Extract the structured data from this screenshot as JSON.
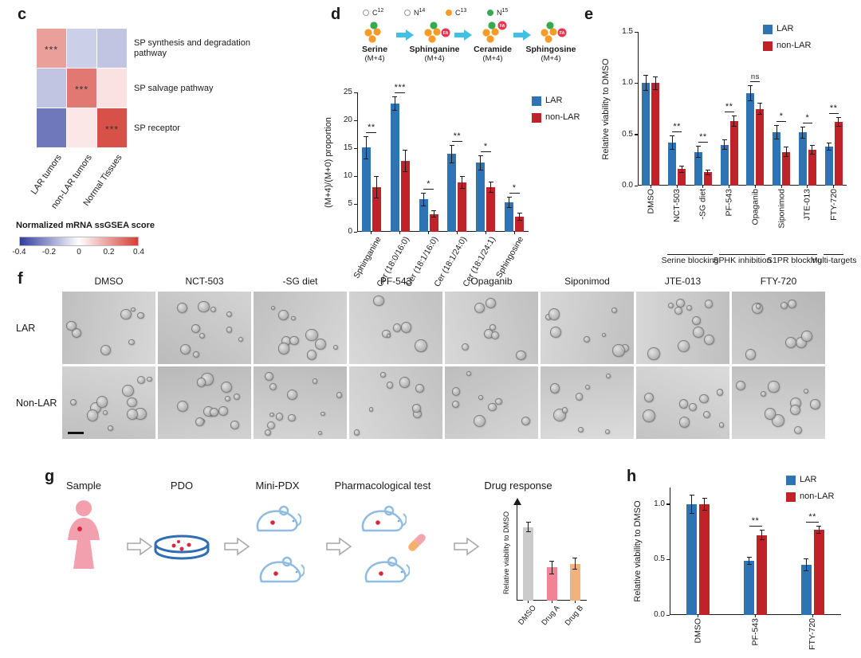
{
  "figure": {
    "panel_labels": {
      "c": "c",
      "d": "d",
      "e": "e",
      "f": "f",
      "g": "g",
      "h": "h"
    }
  },
  "colors": {
    "lar": "#2e74b5",
    "non_lar": "#bf2228",
    "pathway_arrow": "#41c0e6"
  },
  "panel_d": {
    "isotope_legend": [
      {
        "symbol": "C",
        "superscript": "12",
        "color": "none"
      },
      {
        "symbol": "N",
        "superscript": "14",
        "color": "none"
      },
      {
        "symbol": "C",
        "superscript": "13",
        "color": "#f59b28"
      },
      {
        "symbol": "N",
        "superscript": "15",
        "color": "#35aa50"
      }
    ],
    "pathway": [
      {
        "name": "Serine",
        "mass": "(M+4)",
        "fa": null
      },
      {
        "name": "Sphinganine",
        "mass": "(M+4)",
        "fa": "right"
      },
      {
        "name": "Ceramide",
        "mass": "(M+4)",
        "fa": "top"
      },
      {
        "name": "Sphingosine",
        "mass": "(M+4)",
        "fa": "right"
      }
    ]
  },
  "panel_f": {
    "col_labels": [
      "DMSO",
      "NCT-503",
      "-SG diet",
      "PF-543",
      "Opaganib",
      "Siponimod",
      "JTE-013",
      "FTY-720"
    ],
    "row_labels": [
      "LAR",
      "Non-LAR"
    ]
  },
  "panel_g": {
    "steps": [
      {
        "label": "Sample",
        "icon": "patient-icon"
      },
      {
        "label": "PDO",
        "icon": "petri-dish-icon"
      },
      {
        "label": "Mini-PDX",
        "icon": "mice-icon"
      },
      {
        "label": "Pharmacological test",
        "icon": "mice-drug-icon"
      },
      {
        "label": "Drug response",
        "icon": "mini-bar-chart"
      }
    ]
  },
  "chart_data": [
    {
      "id": "c_heatmap",
      "type": "heatmap",
      "rows": [
        "SP synthesis and degradation pathway",
        "SP salvage pathway",
        "SP receptor"
      ],
      "cols": [
        "LAR tumors",
        "non-LAR tumors",
        "Normal Tissues"
      ],
      "values": [
        [
          0.2,
          -0.1,
          -0.12
        ],
        [
          -0.12,
          0.28,
          0.06
        ],
        [
          -0.28,
          0.05,
          0.36
        ]
      ],
      "stars": [
        [
          "***",
          "",
          ""
        ],
        [
          "",
          "***",
          ""
        ],
        [
          "",
          "",
          "***"
        ]
      ],
      "scale": {
        "min": -0.4,
        "max": 0.4,
        "label": "Normalized mRNA ssGSEA score",
        "ticks": [
          "-0.4",
          "-0.2",
          "0",
          "0.2",
          "0.4"
        ]
      }
    },
    {
      "id": "d_bars",
      "type": "bar",
      "ylabel": "(M+4)/(M+0) proportion",
      "ylim": [
        0,
        25
      ],
      "yticks": [
        0,
        5,
        10,
        15,
        20,
        25
      ],
      "ytick_labels": [
        "0",
        "5",
        "10",
        "15",
        "20",
        "25"
      ],
      "categories": [
        "Sphinganine",
        "Cer (18:0/16:0)",
        "Cer (18:1/16:0)",
        "Cer (18:1/24:0)",
        "Cer (18:1/24:1)",
        "Sphingosine"
      ],
      "series": [
        {
          "name": "LAR",
          "color": "#2e74b5",
          "values": [
            15.1,
            23.0,
            5.8,
            14.0,
            12.4,
            5.3
          ],
          "errors": [
            1.9,
            1.1,
            1.1,
            1.5,
            1.2,
            0.9
          ]
        },
        {
          "name": "non-LAR",
          "color": "#bf2228",
          "values": [
            8.0,
            12.7,
            3.2,
            8.8,
            8.0,
            2.7
          ],
          "errors": [
            1.8,
            1.9,
            0.5,
            1.0,
            0.9,
            0.6
          ]
        }
      ],
      "significance": [
        "**",
        "***",
        "*",
        "**",
        "*",
        "*"
      ],
      "legend_position": "right-top"
    },
    {
      "id": "e_bars",
      "type": "bar",
      "ylabel": "Relative viability to DMSO",
      "ylim": [
        0,
        1.5
      ],
      "yticks": [
        0,
        0.5,
        1.0,
        1.5
      ],
      "ytick_labels": [
        "0.0",
        "0.5",
        "1.0",
        "1.5"
      ],
      "categories": [
        "DMSO",
        "NCT-503",
        "-SG diet",
        "PF-543",
        "Opaganib",
        "Siponimod",
        "JTE-013",
        "FTY-720"
      ],
      "series": [
        {
          "name": "LAR",
          "color": "#2e74b5",
          "values": [
            1.0,
            0.42,
            0.33,
            0.4,
            0.9,
            0.52,
            0.52,
            0.38
          ],
          "errors": [
            0.07,
            0.06,
            0.05,
            0.04,
            0.07,
            0.06,
            0.05,
            0.03
          ]
        },
        {
          "name": "non-LAR",
          "color": "#bf2228",
          "values": [
            1.0,
            0.16,
            0.13,
            0.63,
            0.75,
            0.33,
            0.35,
            0.62
          ],
          "errors": [
            0.06,
            0.03,
            0.02,
            0.05,
            0.05,
            0.04,
            0.04,
            0.04
          ]
        }
      ],
      "significance": [
        "",
        "**",
        "**",
        "**",
        "ns",
        "*",
        "*",
        "**"
      ],
      "group_brackets": [
        {
          "label": "Serine blocking",
          "from": 1,
          "to": 2
        },
        {
          "label": "SPHK inhibition",
          "from": 3,
          "to": 4
        },
        {
          "label": "S1PR blocking",
          "from": 5,
          "to": 6
        },
        {
          "label": "Multi-targets",
          "from": 7,
          "to": 7
        }
      ],
      "legend_position": "right-top"
    },
    {
      "id": "g_bars",
      "type": "bar",
      "ylabel": "Relative viability to DMSO",
      "ylim": [
        0,
        1.3
      ],
      "yticks": [],
      "categories": [
        "DMSO",
        "Drug A",
        "Drug B"
      ],
      "series": [
        {
          "name": "response",
          "color": [
            "#cbcbcb",
            "#ee8494",
            "#f3b27c"
          ],
          "values": [
            1.0,
            0.45,
            0.5
          ],
          "errors": [
            0.06,
            0.08,
            0.07
          ]
        }
      ],
      "significance": [
        "",
        "",
        ""
      ],
      "axis_arrow": true
    },
    {
      "id": "h_bars",
      "type": "bar",
      "ylabel": "Relative viability to DMSO",
      "ylim": [
        0,
        1.15
      ],
      "yticks": [
        0,
        0.5,
        1.0
      ],
      "ytick_labels": [
        "0.0",
        "0.5",
        "1.0"
      ],
      "categories": [
        "DMSO",
        "PF-543",
        "FTY-720"
      ],
      "series": [
        {
          "name": "LAR",
          "color": "#2e74b5",
          "values": [
            1.0,
            0.49,
            0.45
          ],
          "errors": [
            0.08,
            0.03,
            0.05
          ]
        },
        {
          "name": "non-LAR",
          "color": "#bf2228",
          "values": [
            1.0,
            0.72,
            0.77
          ],
          "errors": [
            0.05,
            0.04,
            0.03
          ]
        }
      ],
      "significance": [
        "",
        "**",
        "**"
      ],
      "legend_position": "right-top"
    }
  ]
}
